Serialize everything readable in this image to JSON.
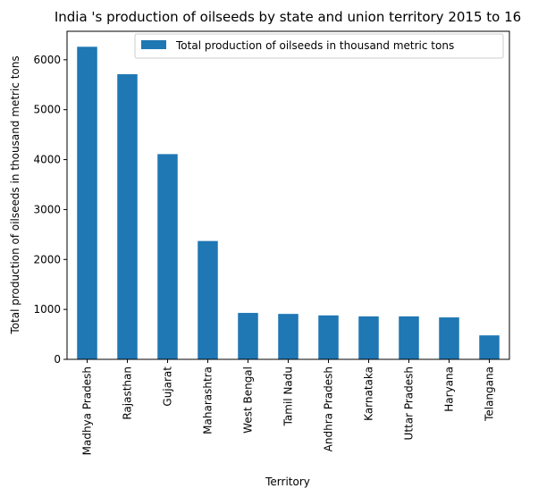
{
  "chart_data": {
    "type": "bar",
    "title": "India 's production of oilseeds by state and union territory 2015 to 16",
    "xlabel": "Territory",
    "ylabel": "Total production of oilseeds in thousand metric tons",
    "categories": [
      "Madhya Pradesh",
      "Rajasthan",
      "Gujarat",
      "Maharashtra",
      "West Bengal",
      "Tamil Nadu",
      "Andhra Pradesh",
      "Karnataka",
      "Uttar Pradesh",
      "Haryana",
      "Telangana"
    ],
    "series": [
      {
        "name": "Total production of oilseeds in thousand metric tons",
        "values": [
          6260,
          5710,
          4110,
          2370,
          930,
          910,
          880,
          860,
          860,
          840,
          480
        ],
        "color": "#1f77b4"
      }
    ],
    "ylim": [
      0,
      6570
    ],
    "yticks": [
      0,
      1000,
      2000,
      3000,
      4000,
      5000,
      6000
    ],
    "legend_position": "top-right",
    "grid": false
  }
}
